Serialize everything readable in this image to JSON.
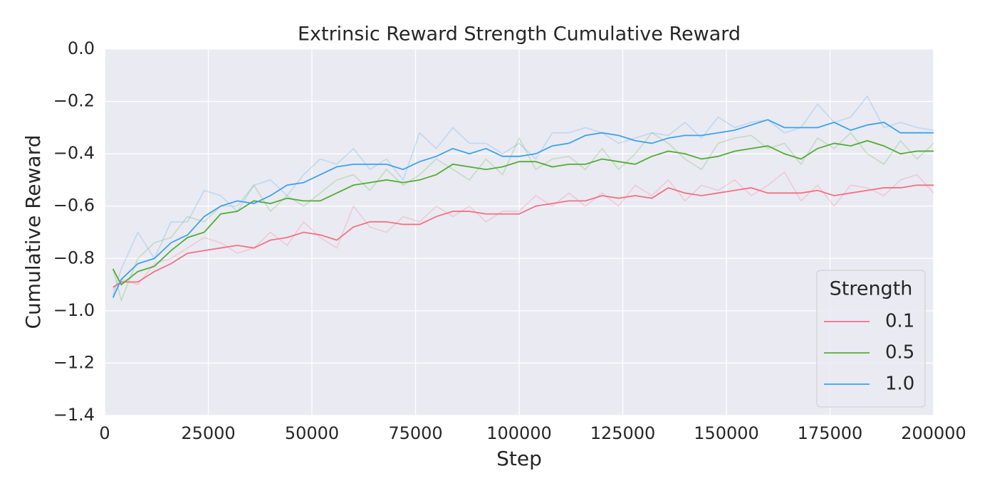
{
  "chart_data": {
    "type": "line",
    "title": "Extrinsic Reward Strength Cumulative Reward",
    "xlabel": "Step",
    "ylabel": "Cumulative Reward",
    "legend_title": "Strength",
    "legend": "lower right",
    "grid": true,
    "xlim": [
      0,
      200000
    ],
    "xticks": [
      0,
      25000,
      50000,
      75000,
      100000,
      125000,
      150000,
      175000,
      200000
    ],
    "ylim": [
      -1.4,
      0
    ],
    "yticks": [
      {
        "value": -1.4,
        "label": "−1.4"
      },
      {
        "value": -1.2,
        "label": "−1.2"
      },
      {
        "value": -1.0,
        "label": "−1.0"
      },
      {
        "value": -0.8,
        "label": "−0.8"
      },
      {
        "value": -0.6,
        "label": "−0.6"
      },
      {
        "value": -0.4,
        "label": "−0.4"
      },
      {
        "value": -0.2,
        "label": "−0.2"
      },
      {
        "value": 0,
        "label": "0.0"
      }
    ],
    "x": [
      2000,
      4000,
      8000,
      12000,
      16000,
      20000,
      24000,
      28000,
      32000,
      36000,
      40000,
      44000,
      48000,
      52000,
      56000,
      60000,
      64000,
      68000,
      72000,
      76000,
      80000,
      84000,
      88000,
      92000,
      96000,
      100000,
      104000,
      108000,
      112000,
      116000,
      120000,
      124000,
      128000,
      132000,
      136000,
      140000,
      144000,
      148000,
      152000,
      156000,
      160000,
      164000,
      168000,
      172000,
      176000,
      180000,
      184000,
      188000,
      192000,
      196000,
      200000
    ],
    "series": [
      {
        "name": "0.1",
        "color": "#f37182",
        "values": [
          -0.91,
          -0.89,
          -0.89,
          -0.85,
          -0.82,
          -0.78,
          -0.77,
          -0.76,
          -0.75,
          -0.76,
          -0.73,
          -0.72,
          -0.7,
          -0.71,
          -0.73,
          -0.68,
          -0.66,
          -0.66,
          -0.67,
          -0.67,
          -0.64,
          -0.62,
          -0.62,
          -0.63,
          -0.63,
          -0.63,
          -0.6,
          -0.59,
          -0.58,
          -0.58,
          -0.56,
          -0.57,
          -0.56,
          -0.57,
          -0.53,
          -0.55,
          -0.56,
          -0.55,
          -0.54,
          -0.53,
          -0.55,
          -0.55,
          -0.55,
          -0.54,
          -0.56,
          -0.55,
          -0.54,
          -0.53,
          -0.53,
          -0.52,
          -0.52
        ],
        "raw_values": [
          -0.92,
          -0.88,
          -0.9,
          -0.82,
          -0.8,
          -0.76,
          -0.72,
          -0.74,
          -0.78,
          -0.76,
          -0.7,
          -0.75,
          -0.66,
          -0.72,
          -0.76,
          -0.6,
          -0.68,
          -0.7,
          -0.64,
          -0.66,
          -0.6,
          -0.64,
          -0.6,
          -0.66,
          -0.62,
          -0.62,
          -0.56,
          -0.6,
          -0.55,
          -0.6,
          -0.55,
          -0.6,
          -0.52,
          -0.56,
          -0.5,
          -0.58,
          -0.52,
          -0.54,
          -0.5,
          -0.56,
          -0.52,
          -0.47,
          -0.58,
          -0.52,
          -0.6,
          -0.52,
          -0.53,
          -0.56,
          -0.5,
          -0.48,
          -0.55
        ]
      },
      {
        "name": "0.5",
        "color": "#4fae33",
        "values": [
          -0.84,
          -0.9,
          -0.85,
          -0.83,
          -0.77,
          -0.72,
          -0.7,
          -0.63,
          -0.62,
          -0.58,
          -0.59,
          -0.57,
          -0.58,
          -0.58,
          -0.55,
          -0.52,
          -0.51,
          -0.5,
          -0.51,
          -0.5,
          -0.48,
          -0.44,
          -0.45,
          -0.46,
          -0.45,
          -0.43,
          -0.43,
          -0.45,
          -0.44,
          -0.44,
          -0.42,
          -0.43,
          -0.44,
          -0.41,
          -0.39,
          -0.4,
          -0.42,
          -0.41,
          -0.39,
          -0.38,
          -0.37,
          -0.4,
          -0.42,
          -0.38,
          -0.36,
          -0.37,
          -0.35,
          -0.37,
          -0.4,
          -0.39,
          -0.39
        ],
        "raw_values": [
          -0.84,
          -0.96,
          -0.8,
          -0.74,
          -0.72,
          -0.64,
          -0.66,
          -0.6,
          -0.6,
          -0.52,
          -0.62,
          -0.56,
          -0.6,
          -0.55,
          -0.5,
          -0.48,
          -0.54,
          -0.46,
          -0.52,
          -0.48,
          -0.42,
          -0.46,
          -0.5,
          -0.42,
          -0.48,
          -0.34,
          -0.46,
          -0.42,
          -0.41,
          -0.46,
          -0.38,
          -0.46,
          -0.4,
          -0.32,
          -0.36,
          -0.42,
          -0.46,
          -0.36,
          -0.34,
          -0.33,
          -0.38,
          -0.36,
          -0.44,
          -0.34,
          -0.38,
          -0.32,
          -0.4,
          -0.44,
          -0.35,
          -0.42,
          -0.36
        ]
      },
      {
        "name": "1.0",
        "color": "#3ba3ec",
        "values": [
          -0.95,
          -0.88,
          -0.82,
          -0.8,
          -0.74,
          -0.71,
          -0.64,
          -0.6,
          -0.58,
          -0.59,
          -0.56,
          -0.52,
          -0.51,
          -0.48,
          -0.45,
          -0.44,
          -0.44,
          -0.44,
          -0.46,
          -0.43,
          -0.41,
          -0.38,
          -0.4,
          -0.38,
          -0.41,
          -0.41,
          -0.4,
          -0.37,
          -0.36,
          -0.33,
          -0.32,
          -0.33,
          -0.35,
          -0.36,
          -0.34,
          -0.33,
          -0.33,
          -0.32,
          -0.31,
          -0.29,
          -0.27,
          -0.3,
          -0.3,
          -0.3,
          -0.28,
          -0.31,
          -0.29,
          -0.28,
          -0.32,
          -0.32,
          -0.32
        ],
        "raw_values": [
          -0.94,
          -0.84,
          -0.7,
          -0.8,
          -0.66,
          -0.66,
          -0.54,
          -0.56,
          -0.62,
          -0.52,
          -0.5,
          -0.56,
          -0.48,
          -0.42,
          -0.44,
          -0.38,
          -0.46,
          -0.42,
          -0.5,
          -0.32,
          -0.38,
          -0.3,
          -0.36,
          -0.36,
          -0.4,
          -0.36,
          -0.42,
          -0.32,
          -0.32,
          -0.3,
          -0.32,
          -0.36,
          -0.34,
          -0.32,
          -0.33,
          -0.28,
          -0.34,
          -0.26,
          -0.3,
          -0.28,
          -0.27,
          -0.32,
          -0.3,
          -0.21,
          -0.28,
          -0.26,
          -0.18,
          -0.3,
          -0.28,
          -0.3,
          -0.31
        ]
      }
    ]
  }
}
